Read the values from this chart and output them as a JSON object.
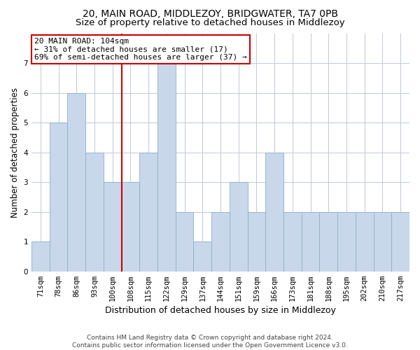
{
  "title1": "20, MAIN ROAD, MIDDLEZOY, BRIDGWATER, TA7 0PB",
  "title2": "Size of property relative to detached houses in Middlezoy",
  "xlabel": "Distribution of detached houses by size in Middlezoy",
  "ylabel": "Number of detached properties",
  "categories": [
    "71sqm",
    "78sqm",
    "86sqm",
    "93sqm",
    "100sqm",
    "108sqm",
    "115sqm",
    "122sqm",
    "129sqm",
    "137sqm",
    "144sqm",
    "151sqm",
    "159sqm",
    "166sqm",
    "173sqm",
    "181sqm",
    "188sqm",
    "195sqm",
    "202sqm",
    "210sqm",
    "217sqm"
  ],
  "values": [
    1,
    5,
    6,
    4,
    3,
    3,
    4,
    7,
    2,
    1,
    2,
    3,
    2,
    4,
    2,
    2,
    2,
    2,
    2,
    2,
    2
  ],
  "bar_color": "#c8d8ea",
  "bar_edge_color": "#8ab0cc",
  "highlight_index": 4,
  "annotation_text": "20 MAIN ROAD: 104sqm\n← 31% of detached houses are smaller (17)\n69% of semi-detached houses are larger (37) →",
  "annotation_box_color": "#ffffff",
  "annotation_box_edge": "#cc0000",
  "ylim": [
    0,
    8
  ],
  "yticks": [
    0,
    1,
    2,
    3,
    4,
    5,
    6,
    7
  ],
  "background_color": "#ffffff",
  "grid_color": "#c0c8d8",
  "footer_text": "Contains HM Land Registry data © Crown copyright and database right 2024.\nContains public sector information licensed under the Open Government Licence v3.0.",
  "red_line_color": "#cc0000",
  "title1_fontsize": 10,
  "title2_fontsize": 9.5,
  "xlabel_fontsize": 9,
  "ylabel_fontsize": 8.5,
  "tick_fontsize": 7.5,
  "annotation_fontsize": 8,
  "footer_fontsize": 6.5
}
